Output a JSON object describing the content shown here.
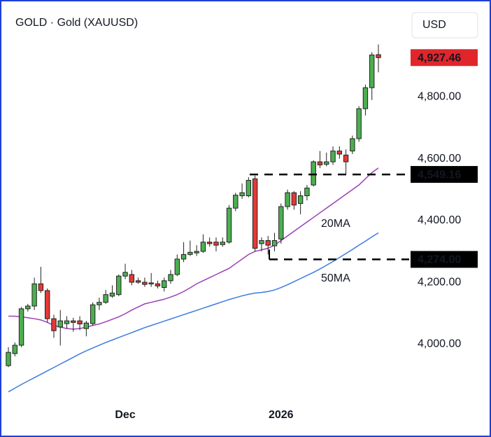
{
  "chart_data": {
    "type": "candlestick",
    "title": "GOLD · Gold (XAUUSD)",
    "currency": "USD",
    "categories": [
      null,
      null,
      null,
      null,
      null,
      null,
      null,
      null,
      null,
      null,
      null,
      null,
      null,
      null,
      null,
      null,
      null,
      null,
      "Dec",
      null,
      null,
      null,
      null,
      null,
      null,
      null,
      null,
      null,
      null,
      null,
      null,
      null,
      null,
      null,
      null,
      null,
      null,
      null,
      null,
      null,
      null,
      null,
      "2026",
      null,
      null,
      null,
      null,
      null,
      null,
      null,
      null,
      null,
      null,
      null,
      null,
      null,
      null,
      null
    ],
    "open": [
      3930,
      3969,
      3996,
      4114,
      4123,
      4195,
      4173,
      4082,
      4055,
      4066,
      4075,
      4075,
      4050,
      4066,
      4127,
      4135,
      4155,
      4160,
      4220,
      4225,
      4205,
      4200,
      4198,
      4195,
      4183,
      4205,
      4225,
      4275,
      4290,
      4295,
      4300,
      4330,
      4330,
      4322,
      4330,
      4440,
      4480,
      4480,
      4535,
      4325,
      4335,
      4318,
      4340,
      4445,
      4490,
      4455,
      4480,
      4515,
      4590,
      4582,
      4590,
      4625,
      4612,
      4625,
      4665,
      4762,
      4830,
      4937
    ],
    "high": [
      3990,
      4005,
      4120,
      4130,
      4215,
      4250,
      4180,
      4095,
      4110,
      4090,
      4085,
      4090,
      4075,
      4135,
      4150,
      4175,
      4190,
      4225,
      4260,
      4240,
      4215,
      4215,
      4230,
      4205,
      4215,
      4240,
      4290,
      4330,
      4335,
      4320,
      4355,
      4345,
      4345,
      4345,
      4450,
      4490,
      4520,
      4540,
      4545,
      4345,
      4350,
      4360,
      4455,
      4500,
      4495,
      4495,
      4515,
      4595,
      4625,
      4620,
      4640,
      4640,
      4630,
      4675,
      4770,
      4840,
      4945,
      4970
    ],
    "low": [
      3925,
      3960,
      3990,
      4105,
      4110,
      4165,
      4070,
      4020,
      3995,
      4050,
      4040,
      4045,
      4025,
      4060,
      4110,
      4130,
      4150,
      4155,
      4210,
      4190,
      4195,
      4185,
      4185,
      4180,
      4170,
      4195,
      4220,
      4265,
      4285,
      4285,
      4295,
      4315,
      4300,
      4315,
      4325,
      4430,
      4470,
      4475,
      4300,
      4300,
      4290,
      4300,
      4325,
      4435,
      4435,
      4420,
      4465,
      4510,
      4570,
      4575,
      4580,
      4600,
      4550,
      4615,
      4655,
      4740,
      4790,
      4880
    ],
    "close": [
      3973,
      3996,
      4114,
      4123,
      4195,
      4173,
      4082,
      4043,
      4075,
      4075,
      4070,
      4065,
      4068,
      4127,
      4135,
      4160,
      4165,
      4220,
      4232,
      4200,
      4200,
      4193,
      4195,
      4188,
      4205,
      4225,
      4275,
      4290,
      4297,
      4300,
      4330,
      4325,
      4320,
      4330,
      4440,
      4482,
      4490,
      4530,
      4310,
      4335,
      4320,
      4335,
      4445,
      4490,
      4450,
      4480,
      4505,
      4590,
      4580,
      4590,
      4625,
      4615,
      4590,
      4665,
      4762,
      4830,
      4936,
      4927.46
    ],
    "up_color": "#4caf50",
    "down_color": "#e53935",
    "lines": [
      {
        "name": "20MA",
        "color": "#9c3fb5",
        "values": [
          4090,
          4090,
          4088,
          4085,
          4082,
          4078,
          4070,
          4060,
          4055,
          4050,
          4048,
          4050,
          4055,
          4060,
          4065,
          4072,
          4080,
          4088,
          4098,
          4110,
          4120,
          4130,
          4135,
          4140,
          4145,
          4152,
          4160,
          4170,
          4182,
          4195,
          4205,
          4215,
          4225,
          4235,
          4245,
          4260,
          4275,
          4290,
          4300,
          4305,
          4310,
          4320,
          4335,
          4350,
          4365,
          4380,
          4395,
          4410,
          4425,
          4440,
          4455,
          4470,
          4485,
          4500,
          4515,
          4535,
          4555,
          4570
        ]
      },
      {
        "name": "50MA",
        "color": "#3d7be0",
        "values": [
          3845,
          3857,
          3869,
          3880,
          3891,
          3902,
          3913,
          3924,
          3935,
          3946,
          3957,
          3968,
          3978,
          3987,
          3996,
          4005,
          4013,
          4021,
          4029,
          4037,
          4045,
          4053,
          4060,
          4067,
          4074,
          4081,
          4088,
          4095,
          4102,
          4109,
          4116,
          4123,
          4130,
          4137,
          4144,
          4150,
          4156,
          4161,
          4165,
          4167,
          4170,
          4175,
          4183,
          4192,
          4202,
          4212,
          4222,
          4232,
          4243,
          4255,
          4267,
          4280,
          4293,
          4306,
          4320,
          4333,
          4347,
          4360
        ]
      }
    ],
    "last_price": {
      "value": 4927.46,
      "label": "4,927.46"
    },
    "price_lines": [
      {
        "value": 4549.16,
        "label": "4,549.16"
      },
      {
        "value": 4274,
        "label": "4,274.00"
      }
    ],
    "ylim": [
      3810,
      5080
    ],
    "yticks": [
      {
        "value": 4000,
        "label": "4,000.00"
      },
      {
        "value": 4200,
        "label": "4,200.00"
      },
      {
        "value": 4400,
        "label": "4,400.00"
      },
      {
        "value": 4600,
        "label": "4,600.00"
      },
      {
        "value": 4800,
        "label": "4,800.00"
      }
    ]
  }
}
